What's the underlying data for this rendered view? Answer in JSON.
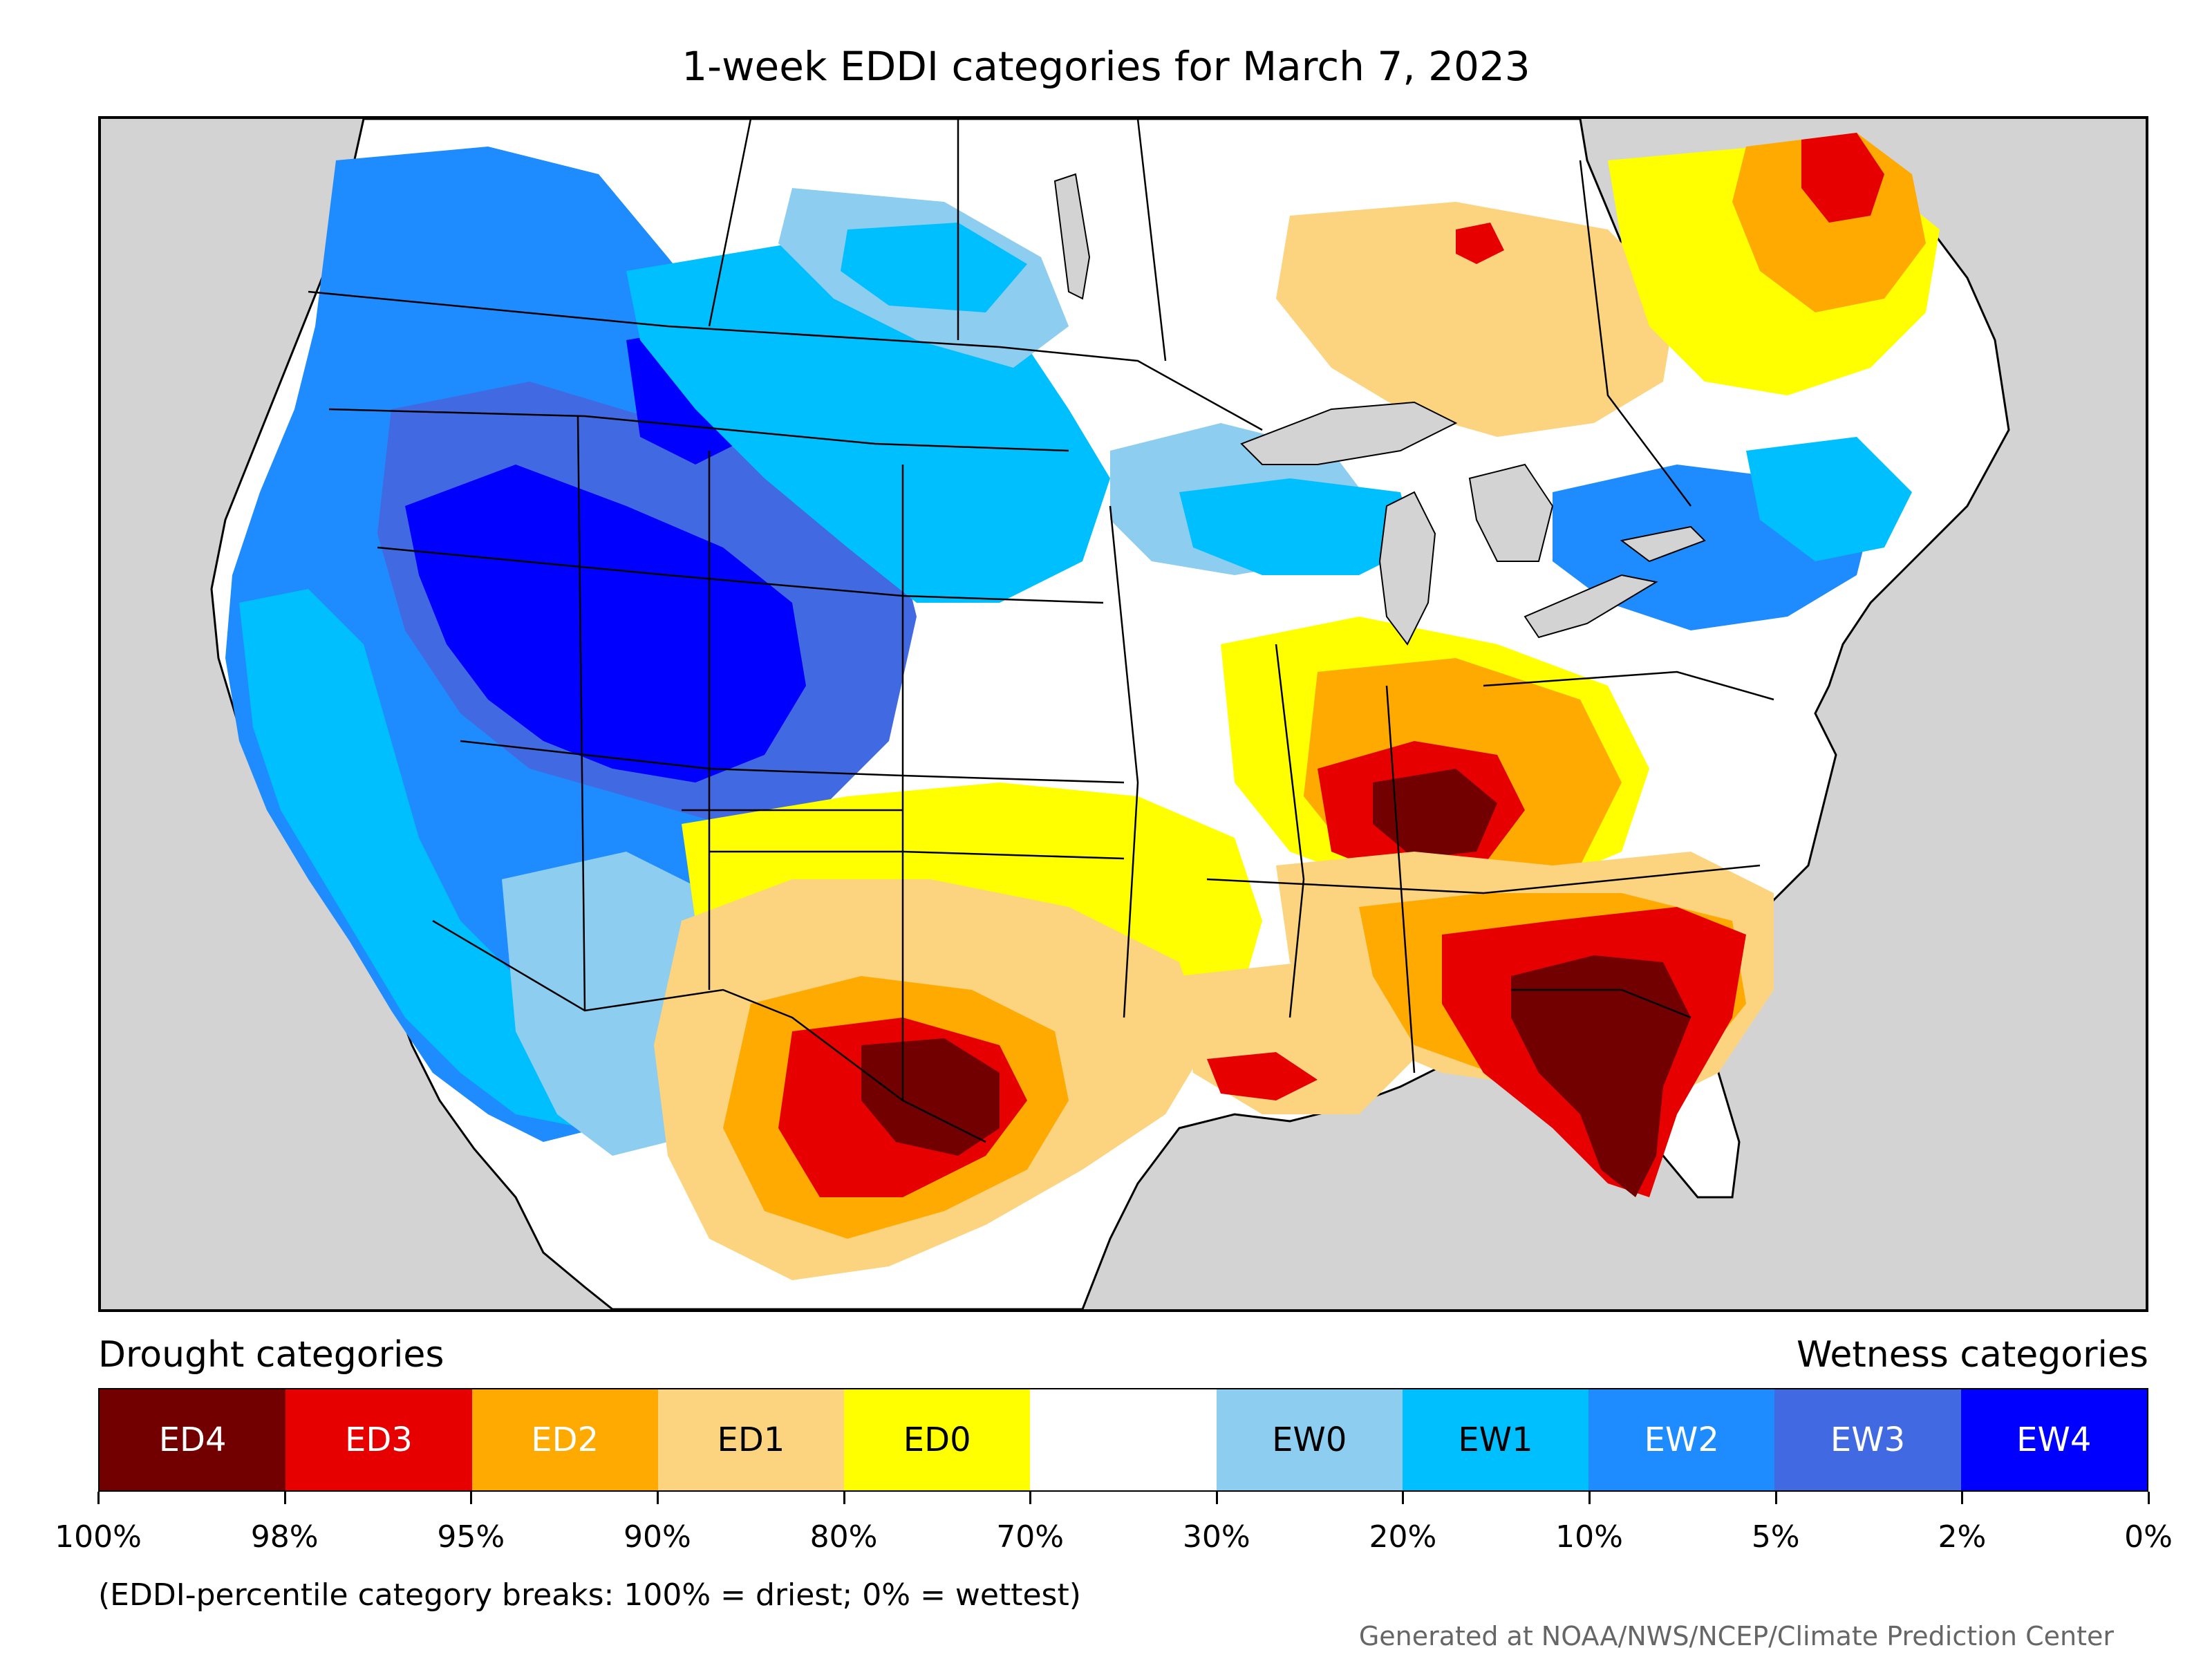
{
  "title": "1-week EDDI categories for March 7, 2023",
  "legend": {
    "drought_heading": "Drought categories",
    "wetness_heading": "Wetness categories",
    "categories": [
      {
        "label": "ED4",
        "color": "#730000",
        "text_color": "#ffffff"
      },
      {
        "label": "ED3",
        "color": "#e60000",
        "text_color": "#ffffff"
      },
      {
        "label": "ED2",
        "color": "#ffaa00",
        "text_color": "#ffffff"
      },
      {
        "label": "ED1",
        "color": "#fcd37f",
        "text_color": "#000000"
      },
      {
        "label": "ED0",
        "color": "#ffff00",
        "text_color": "#000000"
      },
      {
        "label": "",
        "color": "#ffffff",
        "text_color": "#000000"
      },
      {
        "label": "EW0",
        "color": "#8ccdf0",
        "text_color": "#000000"
      },
      {
        "label": "EW1",
        "color": "#00bfff",
        "text_color": "#000000"
      },
      {
        "label": "EW2",
        "color": "#1e8cff",
        "text_color": "#ffffff"
      },
      {
        "label": "EW3",
        "color": "#4169e1",
        "text_color": "#ffffff"
      },
      {
        "label": "EW4",
        "color": "#0000ff",
        "text_color": "#ffffff"
      }
    ],
    "breaks": [
      "100%",
      "98%",
      "95%",
      "90%",
      "80%",
      "70%",
      "30%",
      "20%",
      "10%",
      "5%",
      "2%",
      "0%"
    ]
  },
  "note": "(EDDI-percentile category breaks: 100% = driest; 0% = wettest)",
  "credit": "Generated at NOAA/NWS/NCEP/Climate Prediction Center",
  "map": {
    "ocean_color": "#d3d3d3",
    "land_color": "#ffffff",
    "regions": [
      {
        "name": "pacific-northwest-wet",
        "category": "EW2"
      },
      {
        "name": "great-basin-very-wet",
        "category": "EW4"
      },
      {
        "name": "rockies-wet",
        "category": "EW3"
      },
      {
        "name": "california-wet",
        "category": "EW1"
      },
      {
        "name": "southwest-wet",
        "category": "EW0"
      },
      {
        "name": "northern-plains-wet",
        "category": "EW1"
      },
      {
        "name": "great-lakes-wet",
        "category": "EW1"
      },
      {
        "name": "ontario-dry",
        "category": "ED1"
      },
      {
        "name": "quebec-dry",
        "category": "ED0"
      },
      {
        "name": "quebec-very-dry",
        "category": "ED2"
      },
      {
        "name": "southern-plains-dry",
        "category": "ED0"
      },
      {
        "name": "texas-dry",
        "category": "ED1"
      },
      {
        "name": "west-texas-severe",
        "category": "ED3"
      },
      {
        "name": "west-texas-extreme",
        "category": "ED4"
      },
      {
        "name": "ohio-valley-dry",
        "category": "ED2"
      },
      {
        "name": "kentucky-severe",
        "category": "ED3"
      },
      {
        "name": "southeast-dry",
        "category": "ED2"
      },
      {
        "name": "georgia-carolina-severe",
        "category": "ED3"
      },
      {
        "name": "georgia-florida-extreme",
        "category": "ED4"
      },
      {
        "name": "northeast-wet",
        "category": "EW2"
      }
    ]
  }
}
